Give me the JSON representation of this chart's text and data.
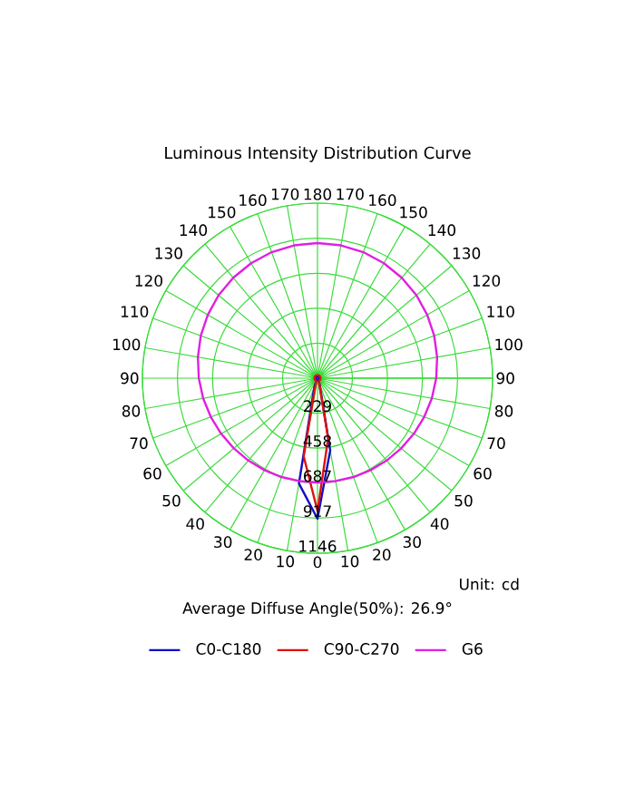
{
  "chart_data": {
    "type": "radar",
    "title": "Luminous Intensity Distribution Curve",
    "categories": [
      "180",
      "170",
      "160",
      "150",
      "140",
      "130",
      "120",
      "110",
      "100",
      "90",
      "80",
      "70",
      "60",
      "50",
      "40",
      "30",
      "20",
      "10",
      "0",
      "10",
      "20",
      "30",
      "40",
      "50",
      "60",
      "70",
      "80",
      "90",
      "100",
      "110",
      "120",
      "130",
      "140",
      "150",
      "160",
      "170"
    ],
    "series": [
      {
        "name": "C0-C180",
        "color": "#1010c0",
        "values": [
          10,
          10,
          10,
          10,
          10,
          10,
          10,
          10,
          10,
          10,
          10,
          10,
          10,
          10,
          10,
          10,
          40,
          480,
          920,
          700,
          60,
          10,
          10,
          10,
          10,
          10,
          10,
          10,
          10,
          10,
          10,
          10,
          10,
          10,
          10,
          10
        ]
      },
      {
        "name": "C90-C270",
        "color": "#e01010",
        "values": [
          20,
          20,
          20,
          20,
          20,
          20,
          20,
          20,
          20,
          20,
          20,
          20,
          20,
          20,
          20,
          20,
          30,
          400,
          870,
          520,
          30,
          20,
          20,
          20,
          20,
          20,
          20,
          20,
          20,
          20,
          20,
          20,
          20,
          20,
          20,
          20
        ]
      },
      {
        "name": "G6",
        "color": "#e020e0",
        "values": [
          885,
          883,
          878,
          869,
          858,
          845,
          829,
          813,
          795,
          777,
          760,
          743,
          728,
          715,
          704,
          695,
          689,
          684,
          683,
          684,
          689,
          695,
          704,
          715,
          728,
          743,
          760,
          777,
          795,
          813,
          829,
          845,
          858,
          869,
          878,
          883
        ]
      }
    ],
    "ylim": [
      0,
      1146
    ],
    "yticks": [
      229,
      458,
      687,
      917,
      1146
    ],
    "grid": true,
    "legend": "bottom",
    "marker": "none",
    "line_style": "solid",
    "annotations": [
      "Unit: cd",
      "Average Diffuse Angle(50%): 26.9°"
    ]
  }
}
